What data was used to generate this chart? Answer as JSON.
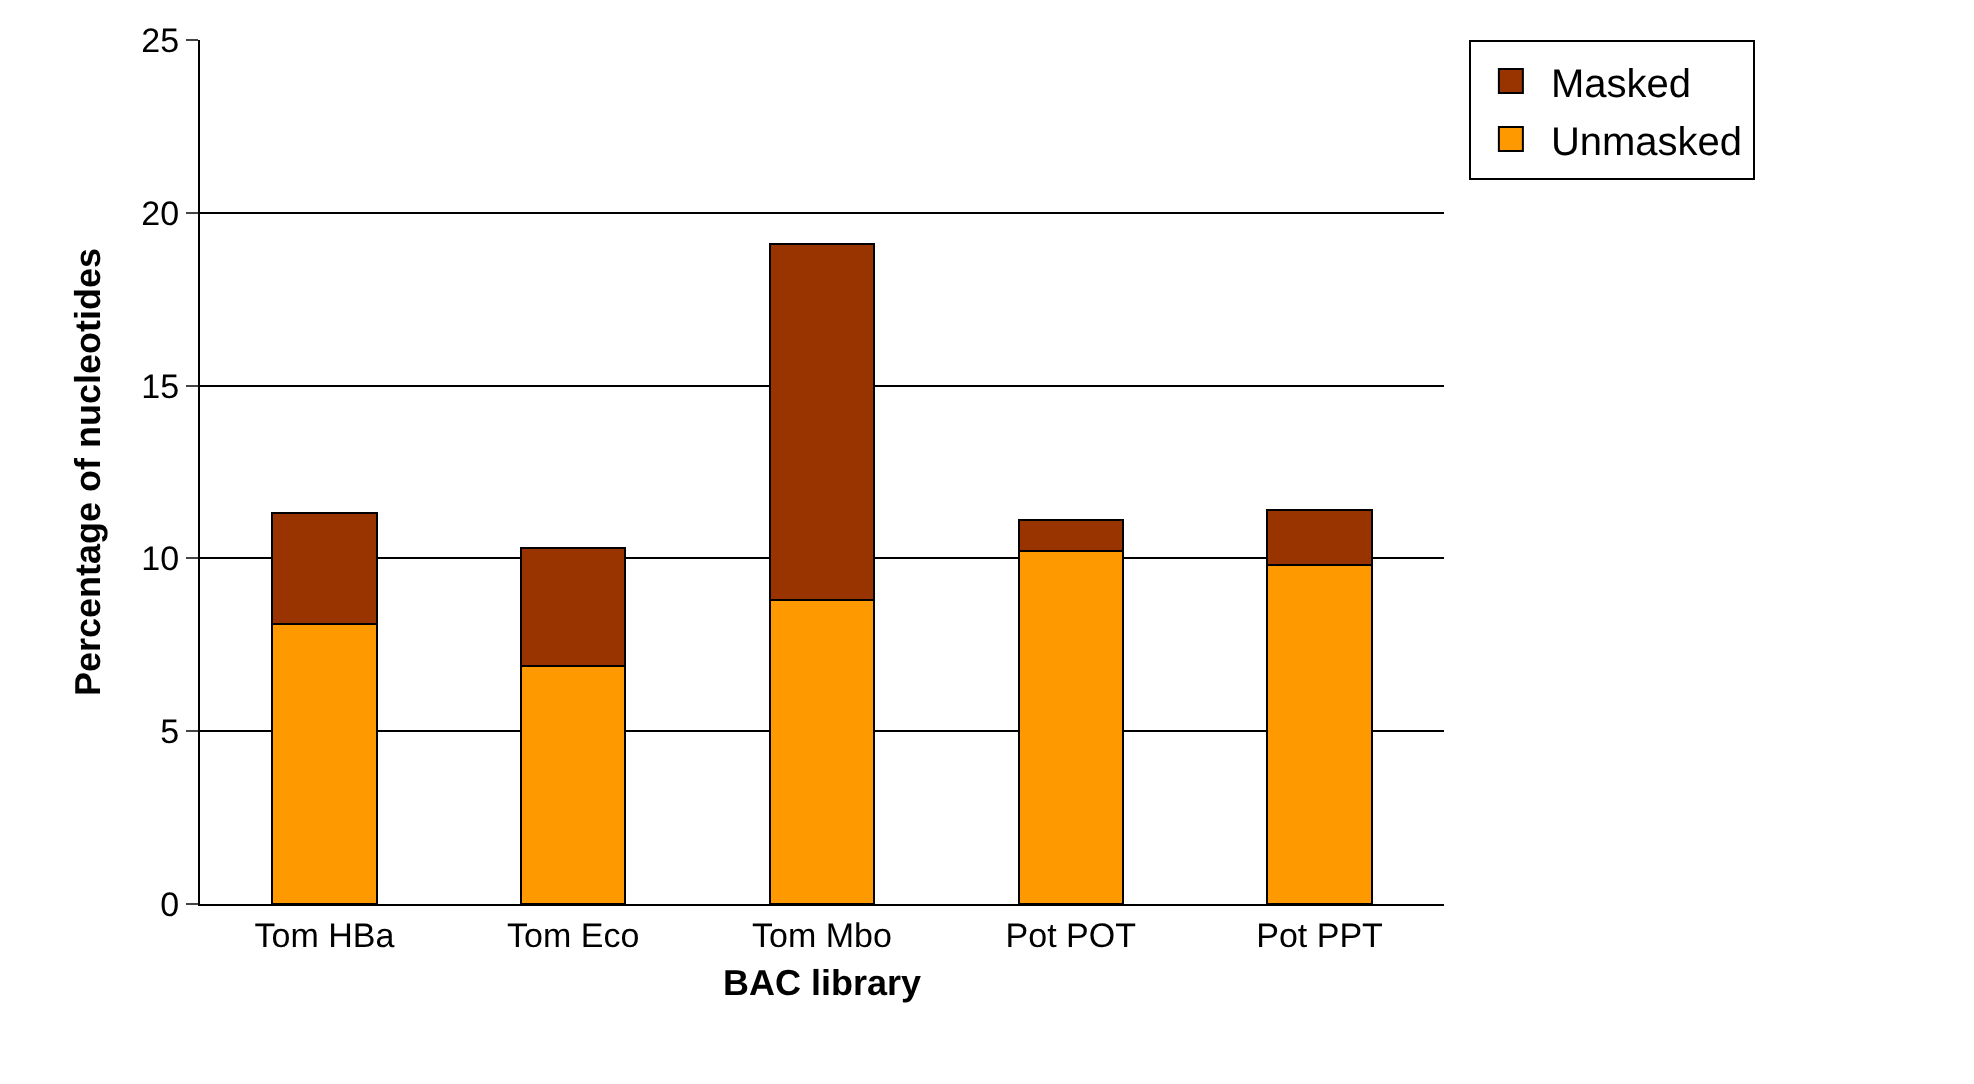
{
  "chart_data": {
    "type": "bar",
    "stacked": true,
    "xlabel": "BAC library",
    "ylabel": "Percentage of nucleotides",
    "categories": [
      "Tom HBa",
      "Tom Eco",
      "Tom Mbo",
      "Pot POT",
      "Pot PPT"
    ],
    "series": [
      {
        "name": "Unmasked",
        "color": "#ff9900",
        "values": [
          8.1,
          6.9,
          8.8,
          10.2,
          9.8
        ]
      },
      {
        "name": "Masked",
        "color": "#993300",
        "values": [
          3.2,
          3.4,
          10.3,
          0.9,
          1.6
        ]
      }
    ],
    "ylim": [
      0,
      25
    ],
    "yticks": [
      0,
      5,
      10,
      15,
      20,
      25
    ],
    "grid": "y",
    "legend": "top right"
  }
}
